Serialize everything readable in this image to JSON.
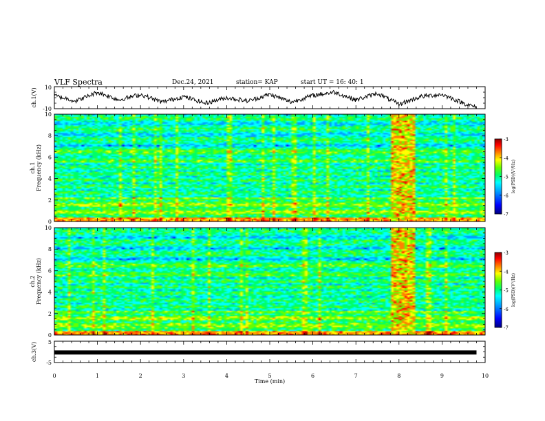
{
  "header": {
    "title": "VLF Spectra",
    "date": "Dec.24, 2021",
    "station": "station= KAP",
    "start": "start  UT =   16: 40: 1"
  },
  "colors": {
    "colormap": [
      "#00007f",
      "#0000ff",
      "#00a0ff",
      "#00ffff",
      "#00ff66",
      "#66ff00",
      "#ffff00",
      "#ff8000",
      "#ff0000",
      "#8b0000"
    ],
    "trace": "#000000"
  },
  "chart_data": [
    {
      "type": "line",
      "name": "ch1-waveform",
      "ylabel": "ch.1(V)",
      "ylim": [
        -10,
        10
      ],
      "yticks": [
        "10",
        "-10"
      ],
      "xlim": [
        0,
        10
      ],
      "description_of_series": "noisy voltage trace",
      "x": [
        0,
        0.5,
        1,
        1.5,
        2,
        2.5,
        3,
        3.5,
        4,
        4.5,
        5,
        5.5,
        6,
        6.5,
        7,
        7.5,
        8,
        8.5,
        9,
        9.5,
        9.8
      ],
      "values": [
        2,
        -3,
        5,
        -2,
        3,
        -4,
        1,
        -5,
        0,
        -3,
        3,
        -4,
        2,
        5,
        -2,
        4,
        -6,
        1,
        3,
        -5,
        -9
      ]
    },
    {
      "type": "heatmap",
      "name": "ch1-spectrogram",
      "ylabel": "ch.1\nFrequency (kHz)",
      "ylim": [
        0,
        10
      ],
      "yticks": [
        "0",
        "2",
        "4",
        "6",
        "8",
        "10"
      ],
      "xlim": [
        0,
        10
      ],
      "colorbar": {
        "label": "log(PSD)(V²/Hz)",
        "range": [
          -7,
          -3
        ],
        "ticks": [
          "-3",
          "-4",
          "-5",
          "-6",
          "-7"
        ]
      },
      "bright_interval_min": [
        7.8,
        8.4
      ]
    },
    {
      "type": "heatmap",
      "name": "ch2-spectrogram",
      "ylabel": "ch.2\nFrequency (kHz)",
      "ylim": [
        0,
        10
      ],
      "yticks": [
        "0",
        "2",
        "4",
        "6",
        "8",
        "10"
      ],
      "xlim": [
        0,
        10
      ],
      "colorbar": {
        "label": "log(PSD)(V²/Hz)",
        "range": [
          -7,
          -3
        ],
        "ticks": [
          "-3",
          "-4",
          "-5",
          "-6",
          "-7"
        ]
      },
      "bright_interval_min": [
        7.8,
        8.4
      ]
    },
    {
      "type": "line",
      "name": "ch3-signal",
      "ylabel": "ch.3(V)",
      "ylim": [
        -5,
        5
      ],
      "yticks": [
        "5",
        "-5"
      ],
      "xlim": [
        0,
        10
      ],
      "x": [
        0,
        9.8
      ],
      "values": [
        -0.3,
        -0.3
      ]
    }
  ],
  "xaxis": {
    "label": "Time (min)",
    "ticks": [
      "0",
      "1",
      "2",
      "3",
      "4",
      "5",
      "6",
      "7",
      "8",
      "9",
      "10"
    ]
  }
}
